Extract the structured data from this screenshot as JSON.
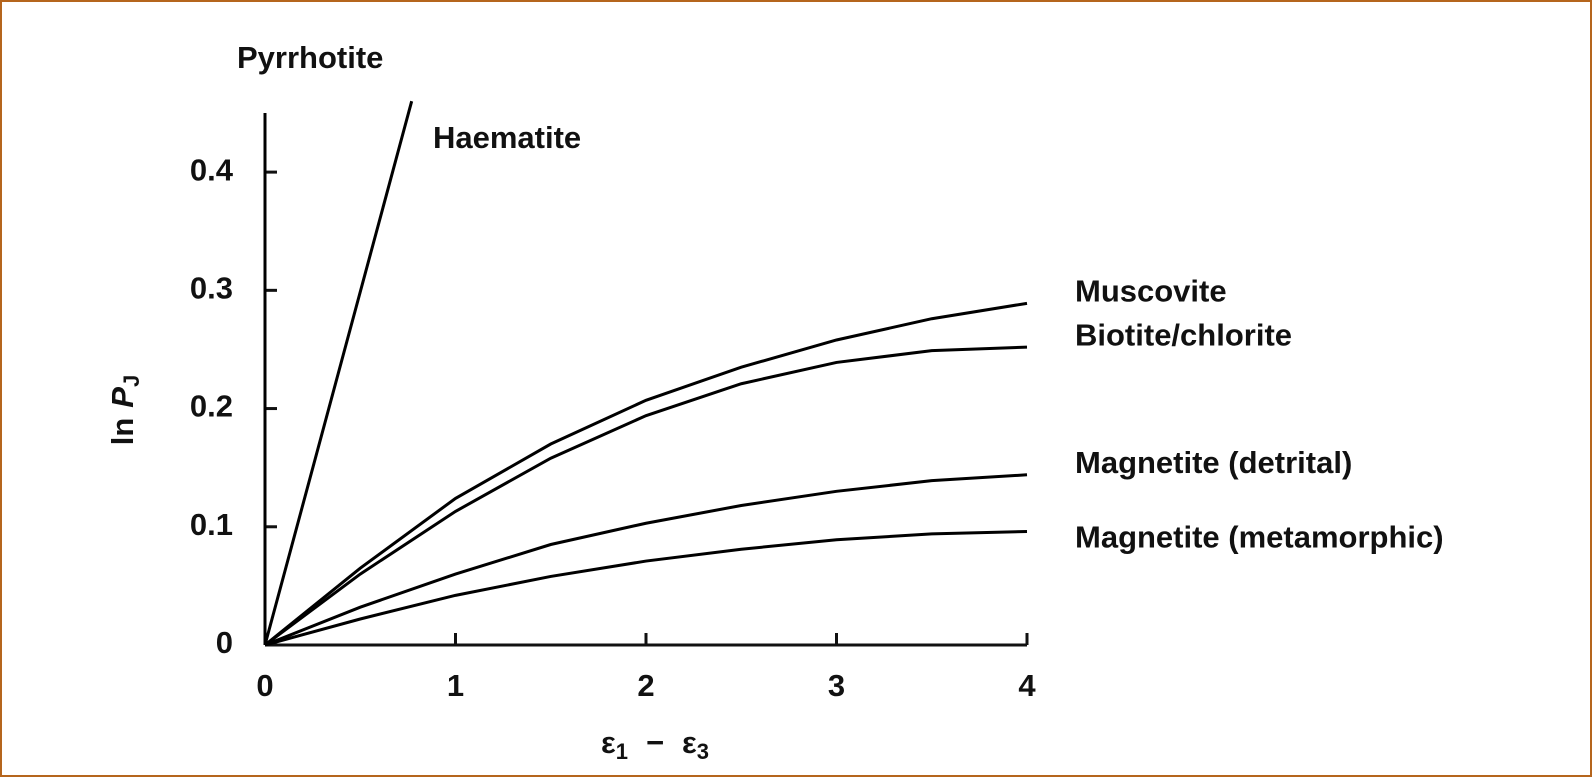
{
  "chart_data": {
    "type": "line",
    "xlabel": [
      "ε",
      "1",
      "−",
      "ε",
      "3"
    ],
    "ylabel": [
      "ln",
      "P",
      "J"
    ],
    "xlim": [
      0,
      4
    ],
    "ylim": [
      0,
      0.45
    ],
    "xticks": [
      0,
      1,
      2,
      3,
      4
    ],
    "yticks": [
      0,
      0.1,
      0.2,
      0.3,
      0.4
    ],
    "series": [
      {
        "name": "Pyrrhotite",
        "color": "#000000",
        "x": [
          0,
          0
        ],
        "values": [
          0,
          0.45
        ]
      },
      {
        "name": "Haematite",
        "color": "#000000",
        "x": [
          0,
          0.77
        ],
        "values": [
          0,
          0.46
        ]
      },
      {
        "name": "Muscovite",
        "color": "#000000",
        "x": [
          0,
          0.5,
          1,
          1.5,
          2,
          2.5,
          3,
          3.5,
          4
        ],
        "values": [
          0,
          0.065,
          0.124,
          0.17,
          0.207,
          0.235,
          0.258,
          0.276,
          0.289
        ]
      },
      {
        "name": "Biotite/chlorite",
        "color": "#000000",
        "x": [
          0,
          0.5,
          1,
          1.5,
          2,
          2.5,
          3,
          3.5,
          4
        ],
        "values": [
          0,
          0.06,
          0.113,
          0.158,
          0.194,
          0.221,
          0.239,
          0.249,
          0.252
        ]
      },
      {
        "name": "Magnetite (detrital)",
        "color": "#000000",
        "x": [
          0,
          0.5,
          1,
          1.5,
          2,
          2.5,
          3,
          3.5,
          4
        ],
        "values": [
          0,
          0.032,
          0.06,
          0.085,
          0.103,
          0.118,
          0.13,
          0.139,
          0.144
        ]
      },
      {
        "name": "Magnetite (metamorphic)",
        "color": "#000000",
        "x": [
          0,
          0.5,
          1,
          1.5,
          2,
          2.5,
          3,
          3.5,
          4
        ],
        "values": [
          0,
          0.022,
          0.042,
          0.058,
          0.071,
          0.081,
          0.089,
          0.094,
          0.096
        ]
      }
    ]
  }
}
